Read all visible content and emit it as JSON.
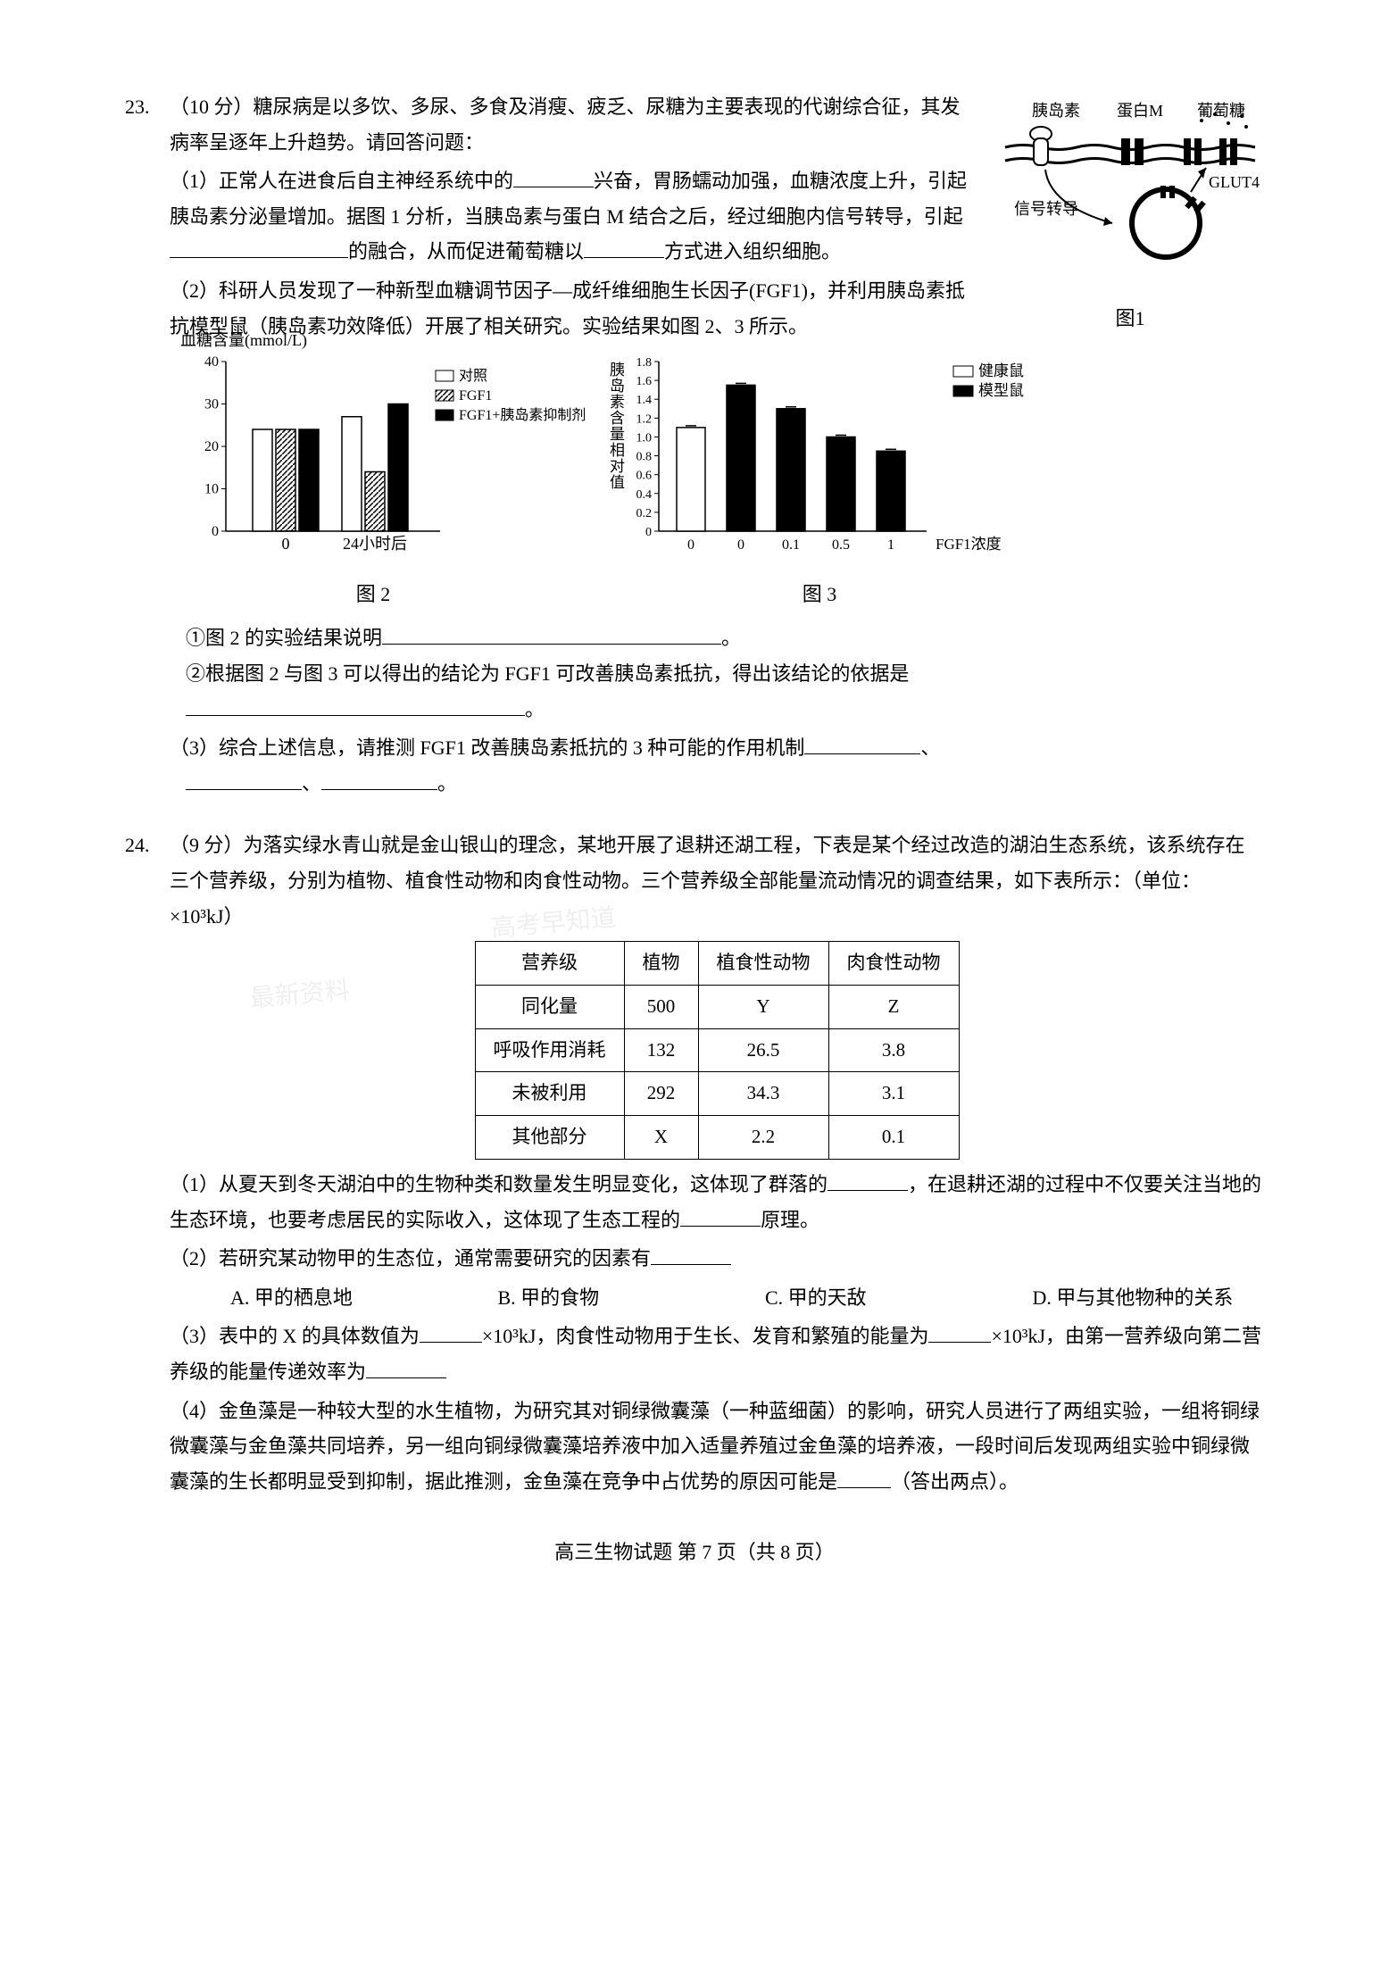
{
  "q23": {
    "num": "23.",
    "points": "（10 分）",
    "intro": "糖尿病是以多饮、多尿、多食及消瘦、疲乏、尿糖为主要表现的代谢综合征，其发病率呈逐年上升趋势。请回答问题：",
    "sub1_text1": "（1）正常人在进食后自主神经系统中的",
    "sub1_text2": "兴奋，胃肠蠕动加强，血糖浓度上升，引起胰岛素分泌量增加。据图 1 分析，当胰岛素与蛋白 M 结合之后，经过细胞内信号转导，引起",
    "sub1_text3": "的融合，从而促进葡萄糖以",
    "sub1_text4": "方式进入组织细胞。",
    "sub2_text": "（2）科研人员发现了一种新型血糖调节因子—成纤维细胞生长因子(FGF1)，并利用胰岛素抵抗模型鼠（胰岛素功效降低）开展了相关研究。实验结果如图 2、3 所示。",
    "sub2_q1": "①图 2 的实验结果说明",
    "sub2_q2": "②根据图 2 与图 3 可以得出的结论为 FGF1 可改善胰岛素抵抗，得出该结论的依据是",
    "sub3_text": "（3）综合上述信息，请推测 FGF1 改善胰岛素抵抗的 3 种可能的作用机制",
    "fig1": {
      "labels": {
        "insulin": "胰岛素",
        "proteinM": "蛋白M",
        "glucose": "葡萄糖",
        "glut4": "GLUT4",
        "signal": "信号转导",
        "caption": "图1"
      }
    },
    "chart2": {
      "type": "bar",
      "y_label": "血糖含量(mmol/L)",
      "y_ticks": [
        "0",
        "10",
        "20",
        "30",
        "40"
      ],
      "y_max": 40,
      "x_categories": [
        "0",
        "24小时后"
      ],
      "legend": [
        "对照",
        "FGF1",
        "FGF1+胰岛素抑制剂"
      ],
      "data": {
        "group1": [
          24,
          24,
          24
        ],
        "group2": [
          27,
          14,
          30
        ]
      },
      "bar_colors": [
        "white",
        "hatch",
        "black"
      ],
      "caption": "图 2"
    },
    "chart3": {
      "type": "bar",
      "y_label": "胰岛素含量相对值",
      "y_ticks": [
        "0",
        "0.2",
        "0.4",
        "0.6",
        "0.8",
        "1.0",
        "1.2",
        "1.4",
        "1.6",
        "1.8"
      ],
      "y_max": 1.8,
      "x_categories": [
        "0",
        "0",
        "0.1",
        "0.5",
        "1"
      ],
      "x_label": "FGF1浓度",
      "legend": [
        "健康鼠",
        "模型鼠"
      ],
      "data": [
        1.1,
        1.55,
        1.3,
        1.0,
        0.85
      ],
      "bar_colors": [
        "white",
        "black",
        "black",
        "black",
        "black"
      ],
      "caption": "图 3"
    }
  },
  "q24": {
    "num": "24.",
    "points": "（9 分）",
    "intro": "为落实绿水青山就是金山银山的理念，某地开展了退耕还湖工程，下表是某个经过改造的湖泊生态系统，该系统存在三个营养级，分别为植物、植食性动物和肉食性动物。三个营养级全部能量流动情况的调查结果，如下表所示：（单位：×10³kJ）",
    "table": {
      "columns": [
        "营养级",
        "植物",
        "植食性动物",
        "肉食性动物"
      ],
      "rows": [
        [
          "同化量",
          "500",
          "Y",
          "Z"
        ],
        [
          "呼吸作用消耗",
          "132",
          "26.5",
          "3.8"
        ],
        [
          "未被利用",
          "292",
          "34.3",
          "3.1"
        ],
        [
          "其他部分",
          "X",
          "2.2",
          "0.1"
        ]
      ]
    },
    "sub1_text1": "（1）从夏天到冬天湖泊中的生物种类和数量发生明显变化，这体现了群落的",
    "sub1_text2": "，在退耕还湖的过程中不仅要关注当地的生态环境，也要考虑居民的实际收入，这体现了生态工程的",
    "sub1_text3": "原理。",
    "sub2_text": "（2）若研究某动物甲的生态位，通常需要研究的因素有",
    "options": {
      "A": "A. 甲的栖息地",
      "B": "B. 甲的食物",
      "C": "C. 甲的天敌",
      "D": "D. 甲与其他物种的关系"
    },
    "sub3_text1": "（3）表中的 X 的具体数值为",
    "sub3_text2": "×10³kJ，肉食性动物用于生长、发育和繁殖的能量为",
    "sub3_text3": "×10³kJ，由第一营养级向第二营养级的能量传递效率为",
    "sub4_text1": "（4）金鱼藻是一种较大型的水生植物，为研究其对铜绿微囊藻（一种蓝细菌）的影响，研究人员进行了两组实验，一组将铜绿微囊藻与金鱼藻共同培养，另一组向铜绿微囊藻培养液中加入适量养殖过金鱼藻的培养液，一段时间后发现两组实验中铜绿微囊藻的生长都明显受到抑制，据此推测，金鱼藻在竞争中占优势的原因可能是",
    "sub4_text2": "（答出两点）。"
  },
  "footer": "高三生物试题 第 7 页（共 8 页）"
}
